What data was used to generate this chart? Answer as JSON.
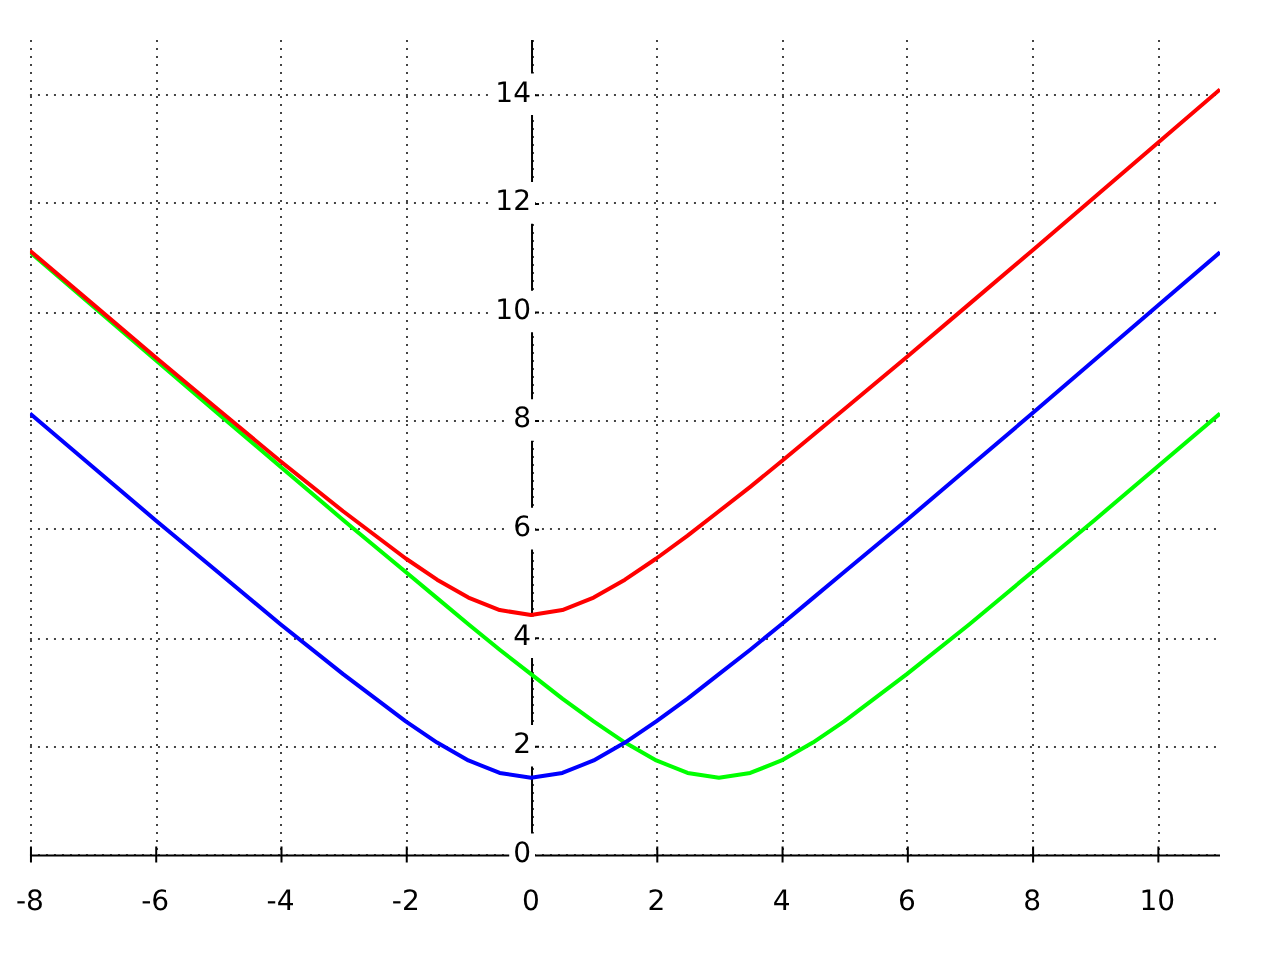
{
  "chart_data": {
    "type": "line",
    "x": [
      -8,
      -7,
      -6,
      -5,
      -4,
      -3,
      -2,
      -1.5,
      -1,
      -0.5,
      0,
      0.5,
      1,
      1.5,
      2,
      2.5,
      3,
      3.5,
      4,
      4.5,
      5,
      6,
      7,
      8,
      9,
      10,
      11
    ],
    "series": [
      {
        "color": "#ff0000",
        "values": [
          11.12,
          10.14,
          9.16,
          8.2,
          7.24,
          6.32,
          5.45,
          5.06,
          4.73,
          4.5,
          4.41,
          4.5,
          4.73,
          5.06,
          5.45,
          5.87,
          6.32,
          6.77,
          7.24,
          7.72,
          8.2,
          9.16,
          10.14,
          11.12,
          12.11,
          13.1,
          14.09
        ]
      },
      {
        "color": "#0000ff",
        "values": [
          8.12,
          7.14,
          6.16,
          5.2,
          4.24,
          3.32,
          2.45,
          2.06,
          1.73,
          1.5,
          1.41,
          1.5,
          1.73,
          2.06,
          2.45,
          2.87,
          3.32,
          3.77,
          4.24,
          4.72,
          5.2,
          6.16,
          7.14,
          8.12,
          9.11,
          10.1,
          11.09
        ]
      },
      {
        "color": "#00ff00",
        "values": [
          11.09,
          10.1,
          9.11,
          8.12,
          7.14,
          6.16,
          5.2,
          4.72,
          4.24,
          3.77,
          3.32,
          2.87,
          2.45,
          2.06,
          1.73,
          1.5,
          1.41,
          1.5,
          1.73,
          2.06,
          2.45,
          3.32,
          4.24,
          5.2,
          6.16,
          7.14,
          8.12
        ]
      }
    ],
    "xlim": [
      -8,
      11
    ],
    "xticks": [
      -8,
      -6,
      -4,
      -2,
      0,
      2,
      4,
      6,
      8,
      10
    ],
    "ylim": [
      0,
      15
    ],
    "yticks": [
      0,
      2,
      4,
      6,
      8,
      10,
      12,
      14
    ],
    "grid": true,
    "legend": false,
    "marker": "none",
    "line_style": "solid"
  }
}
